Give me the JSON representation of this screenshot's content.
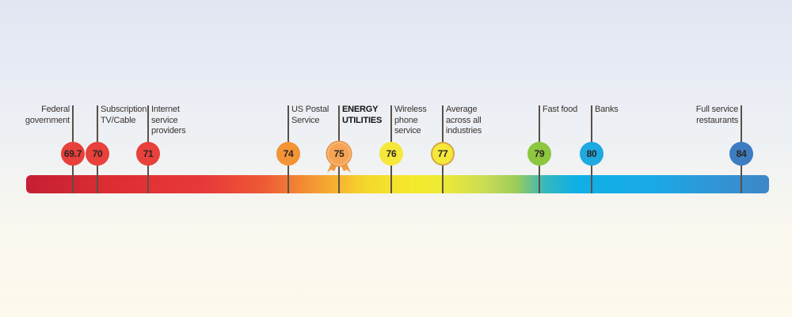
{
  "chart_data": {
    "type": "timeline-scale",
    "points": [
      {
        "value": 69.7,
        "display": "69.7",
        "label": [
          "Federal",
          "government"
        ],
        "color": "#e8403a",
        "align": "right",
        "bold": false
      },
      {
        "value": 70,
        "display": "70",
        "label": [
          "Subscription",
          "TV/Cable"
        ],
        "color": "#e8403a",
        "align": "left",
        "bold": false
      },
      {
        "value": 71,
        "display": "71",
        "label": [
          "Internet",
          "service",
          "providers"
        ],
        "color": "#e8403a",
        "align": "left",
        "bold": false
      },
      {
        "value": 74,
        "display": "74",
        "label": [
          "US Postal",
          "Service"
        ],
        "color": "#f39436",
        "align": "left",
        "bold": false
      },
      {
        "value": 75,
        "display": "75",
        "label": [
          "ENERGY",
          "UTILITIES"
        ],
        "color": "#f4a454",
        "align": "left",
        "bold": true,
        "ribbon": true
      },
      {
        "value": 76,
        "display": "76",
        "label": [
          "Wireless",
          "phone",
          "service"
        ],
        "color": "#f6e83a",
        "align": "left",
        "bold": false
      },
      {
        "value": 77,
        "display": "77",
        "label": [
          "Average",
          "across all",
          "industries"
        ],
        "color": "#f6e83a",
        "align": "left",
        "bold": false,
        "ring": "#d6a846"
      },
      {
        "value": 79,
        "display": "79",
        "label": [
          "Fast food"
        ],
        "color": "#8dc63f",
        "align": "left",
        "bold": false
      },
      {
        "value": 80,
        "display": "80",
        "label": [
          "Banks"
        ],
        "color": "#1ea9e1",
        "align": "left",
        "bold": false
      },
      {
        "value": 84,
        "display": "84",
        "label": [
          "Full service",
          "restaurants"
        ],
        "color": "#3d7cc1",
        "align": "right",
        "bold": false
      }
    ],
    "scale_min": 69.0,
    "scale_max": 84.5
  }
}
